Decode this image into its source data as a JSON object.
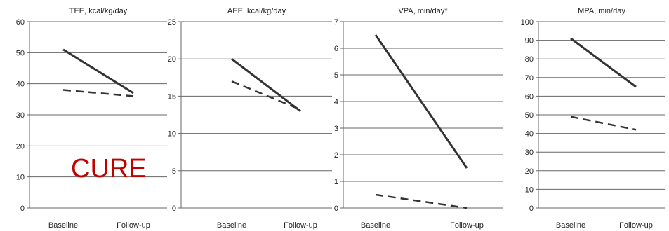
{
  "overlay": {
    "label": "CURE",
    "color": "#c00000"
  },
  "chart_data": [
    {
      "type": "line",
      "title": "TEE, kcal/kg/day",
      "categories": [
        "Baseline",
        "Follow-up"
      ],
      "ylim": [
        0,
        60
      ],
      "yticks": [
        0,
        10,
        20,
        30,
        40,
        50,
        60
      ],
      "grid": true,
      "series": [
        {
          "style": "solid",
          "values": [
            51,
            37
          ]
        },
        {
          "style": "dashed",
          "values": [
            38,
            36
          ]
        }
      ]
    },
    {
      "type": "line",
      "title": "AEE, kcal/kg/day",
      "categories": [
        "Baseline",
        "Follow-up"
      ],
      "ylim": [
        0,
        25
      ],
      "yticks": [
        0,
        5,
        10,
        15,
        20,
        25
      ],
      "grid": true,
      "series": [
        {
          "style": "solid",
          "values": [
            20,
            13
          ]
        },
        {
          "style": "dashed",
          "values": [
            17,
            13.2
          ]
        }
      ]
    },
    {
      "type": "line",
      "title": "VPA, min/day*",
      "categories": [
        "Baseline",
        "Follow-up"
      ],
      "ylim": [
        0,
        7
      ],
      "yticks": [
        0,
        1,
        2,
        3,
        4,
        5,
        6,
        7
      ],
      "grid": true,
      "series": [
        {
          "style": "solid",
          "values": [
            6.5,
            1.5
          ]
        },
        {
          "style": "dashed",
          "values": [
            0.5,
            0
          ]
        }
      ]
    },
    {
      "type": "line",
      "title": "MPA, min/day",
      "categories": [
        "Baseline",
        "Follow-up"
      ],
      "ylim": [
        0,
        100
      ],
      "yticks": [
        0,
        10,
        20,
        30,
        40,
        50,
        60,
        70,
        80,
        90,
        100
      ],
      "grid": true,
      "series": [
        {
          "style": "solid",
          "values": [
            91,
            65
          ]
        },
        {
          "style": "dashed",
          "values": [
            49,
            42
          ]
        }
      ]
    }
  ]
}
